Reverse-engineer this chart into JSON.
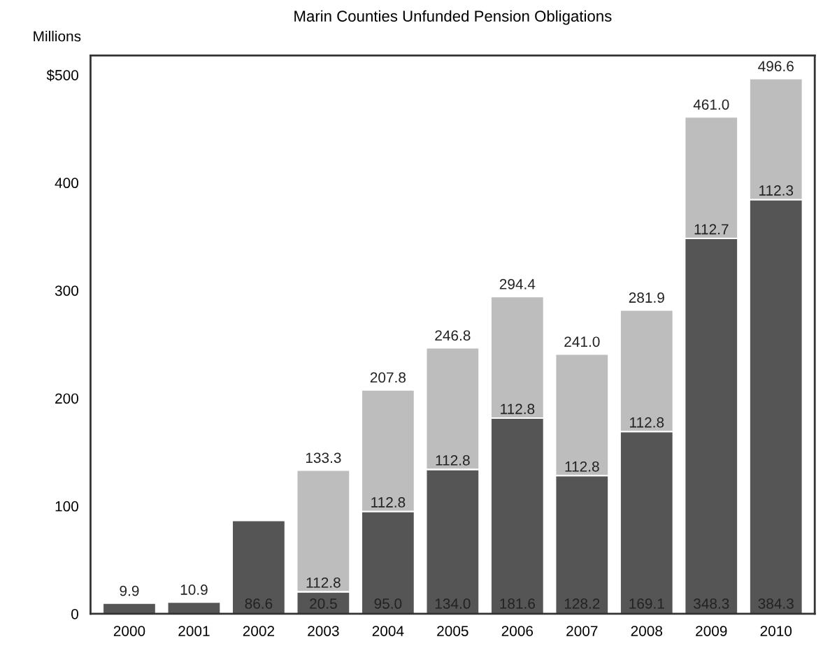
{
  "chart_data": {
    "type": "bar",
    "title": "Marin Counties Unfunded Pension Obligations",
    "ylabel": "Millions",
    "stacked": true,
    "categories": [
      "2000",
      "2001",
      "2002",
      "2003",
      "2004",
      "2005",
      "2006",
      "2007",
      "2008",
      "2009",
      "2010"
    ],
    "series": [
      {
        "color": "#555555",
        "values": [
          9.9,
          10.9,
          86.6,
          20.5,
          95.0,
          134.0,
          181.6,
          128.2,
          169.1,
          348.3,
          384.3
        ],
        "value_labels": [
          null,
          null,
          "86.6",
          "20.5",
          "95.0",
          "134.0",
          "181.6",
          "128.2",
          "169.1",
          "348.3",
          "384.3"
        ]
      },
      {
        "color": "#bdbdbd",
        "values": [
          null,
          null,
          null,
          112.8,
          112.8,
          112.8,
          112.8,
          112.8,
          112.8,
          112.7,
          112.3
        ],
        "value_labels": [
          null,
          null,
          null,
          "112.8",
          "112.8",
          "112.8",
          "112.8",
          "112.8",
          "112.8",
          "112.7",
          "112.3"
        ]
      }
    ],
    "totals": [
      "9.9",
      "10.9",
      null,
      "133.3",
      "207.8",
      "246.8",
      "294.4",
      "241.0",
      "281.9",
      "461.0",
      "496.6"
    ],
    "ylim": [
      0,
      518
    ],
    "yticks": [
      0,
      100,
      200,
      300,
      400,
      {
        "value": 500,
        "label": "$500"
      }
    ],
    "grid": false,
    "legend": false
  }
}
